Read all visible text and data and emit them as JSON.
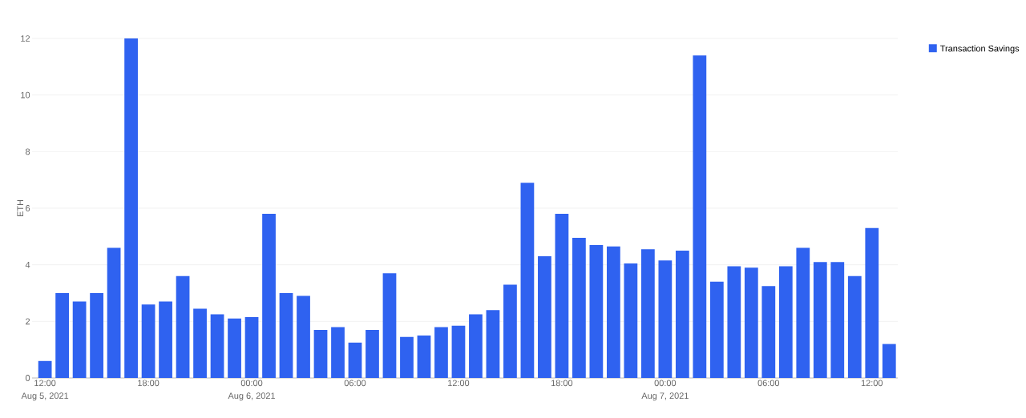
{
  "chart_data": {
    "type": "bar",
    "ylabel": "ETH",
    "x": [
      "2021-08-05T12:00",
      "2021-08-05T13:00",
      "2021-08-05T14:00",
      "2021-08-05T15:00",
      "2021-08-05T16:00",
      "2021-08-05T17:00",
      "2021-08-05T18:00",
      "2021-08-05T19:00",
      "2021-08-05T20:00",
      "2021-08-05T21:00",
      "2021-08-05T22:00",
      "2021-08-05T23:00",
      "2021-08-06T00:00",
      "2021-08-06T01:00",
      "2021-08-06T02:00",
      "2021-08-06T03:00",
      "2021-08-06T04:00",
      "2021-08-06T05:00",
      "2021-08-06T06:00",
      "2021-08-06T07:00",
      "2021-08-06T08:00",
      "2021-08-06T09:00",
      "2021-08-06T10:00",
      "2021-08-06T11:00",
      "2021-08-06T12:00",
      "2021-08-06T13:00",
      "2021-08-06T14:00",
      "2021-08-06T15:00",
      "2021-08-06T16:00",
      "2021-08-06T17:00",
      "2021-08-06T18:00",
      "2021-08-06T19:00",
      "2021-08-06T20:00",
      "2021-08-06T21:00",
      "2021-08-06T22:00",
      "2021-08-06T23:00",
      "2021-08-07T00:00",
      "2021-08-07T01:00",
      "2021-08-07T02:00",
      "2021-08-07T03:00",
      "2021-08-07T04:00",
      "2021-08-07T05:00",
      "2021-08-07T06:00",
      "2021-08-07T07:00",
      "2021-08-07T08:00",
      "2021-08-07T09:00",
      "2021-08-07T10:00",
      "2021-08-07T11:00",
      "2021-08-07T12:00",
      "2021-08-07T13:00"
    ],
    "series": [
      {
        "name": "Transaction Savings",
        "color": "#2f62f0",
        "values": [
          0.6,
          3.0,
          2.7,
          3.0,
          4.6,
          12.0,
          2.6,
          2.7,
          3.6,
          2.45,
          2.25,
          2.1,
          2.15,
          5.8,
          3.0,
          2.9,
          1.7,
          1.8,
          1.25,
          1.7,
          3.7,
          1.45,
          1.5,
          1.8,
          1.85,
          2.25,
          2.4,
          3.3,
          6.9,
          4.3,
          5.8,
          4.95,
          4.7,
          4.65,
          4.05,
          4.55,
          4.15,
          4.5,
          11.4,
          3.4,
          3.95,
          3.9,
          3.25,
          3.95,
          4.6,
          4.1,
          4.1,
          3.6,
          5.3,
          1.2
        ]
      }
    ],
    "xlim": [
      "2021-08-05T11:15",
      "2021-08-07T13:30"
    ],
    "xticks": [
      {
        "value": "2021-08-05T12:00",
        "label": "12:00"
      },
      {
        "value": "2021-08-05T18:00",
        "label": "18:00"
      },
      {
        "value": "2021-08-06T00:00",
        "label": "00:00"
      },
      {
        "value": "2021-08-06T06:00",
        "label": "06:00"
      },
      {
        "value": "2021-08-06T12:00",
        "label": "12:00"
      },
      {
        "value": "2021-08-06T18:00",
        "label": "18:00"
      },
      {
        "value": "2021-08-07T00:00",
        "label": "00:00"
      },
      {
        "value": "2021-08-07T06:00",
        "label": "06:00"
      },
      {
        "value": "2021-08-07T12:00",
        "label": "12:00"
      }
    ],
    "ylim": [
      0,
      12
    ],
    "yticks": [
      0,
      2,
      4,
      6,
      8,
      10,
      12
    ],
    "x2lim": [
      "2021-08-05T11:15",
      "2021-08-07T13:30"
    ],
    "x2ticks": [
      {
        "value": "2021-08-05T12:00",
        "label": "Aug 5, 2021"
      },
      {
        "value": "2021-08-06T00:00",
        "label": "Aug 6, 2021"
      },
      {
        "value": "2021-08-07T00:00",
        "label": "Aug 7, 2021"
      }
    ],
    "grid": "y",
    "legend": "top right"
  }
}
